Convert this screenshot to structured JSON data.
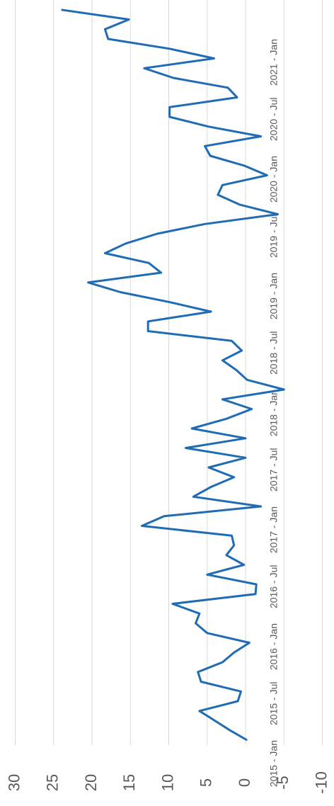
{
  "chart_data": {
    "type": "line",
    "categories": [
      "2015 - Jan",
      null,
      null,
      null,
      null,
      null,
      "2015 - Jul",
      null,
      null,
      null,
      null,
      null,
      "2016 - Jan",
      null,
      null,
      null,
      null,
      null,
      "2016 - Jul",
      null,
      null,
      null,
      null,
      null,
      "2017 - Jan",
      null,
      null,
      null,
      null,
      null,
      "2017 - Jul",
      null,
      null,
      null,
      null,
      null,
      "2018 - Jan",
      null,
      null,
      null,
      null,
      null,
      "2018 - Jul",
      null,
      null,
      null,
      null,
      null,
      "2019 - Jan",
      null,
      null,
      null,
      null,
      null,
      "2019 - Jul",
      null,
      null,
      null,
      null,
      null,
      "2020 - Jan",
      null,
      null,
      null,
      null,
      null,
      "2020 - Jul",
      null,
      null,
      null,
      null,
      null,
      "2021 - Jan",
      null,
      null,
      null
    ],
    "values": [
      -0.2,
      2,
      4,
      6,
      1,
      0.6,
      5.8,
      6.2,
      3,
      1.5,
      -0.5,
      5,
      6.5,
      6,
      9.5,
      -1.3,
      -1.4,
      5,
      0.2,
      2.5,
      1.5,
      1.8,
      13.5,
      10.6,
      -2,
      6.8,
      4.5,
      1.5,
      4.8,
      0,
      7.8,
      0,
      7,
      2.5,
      -0.8,
      3,
      -5,
      -0.2,
      1.2,
      3,
      0.5,
      1.8,
      12.7,
      12.7,
      4.5,
      10,
      16.3,
      20.5,
      11,
      12.6,
      18.3,
      15.6,
      11.5,
      5.3,
      -4.2,
      0.8,
      3.6,
      3,
      -2.8,
      0.2,
      4.6,
      5.3,
      -2,
      4.8,
      9.9,
      9.9,
      1.1,
      2.3,
      9.4,
      13.2,
      4.1,
      9.9,
      17.9,
      18.3,
      15.2,
      24
    ],
    "color": "#1f6cb4",
    "ylim": [
      -10,
      30
    ],
    "yticks": [
      -10,
      -5,
      0,
      5,
      10,
      15,
      20,
      25,
      30
    ],
    "grid": true
  }
}
